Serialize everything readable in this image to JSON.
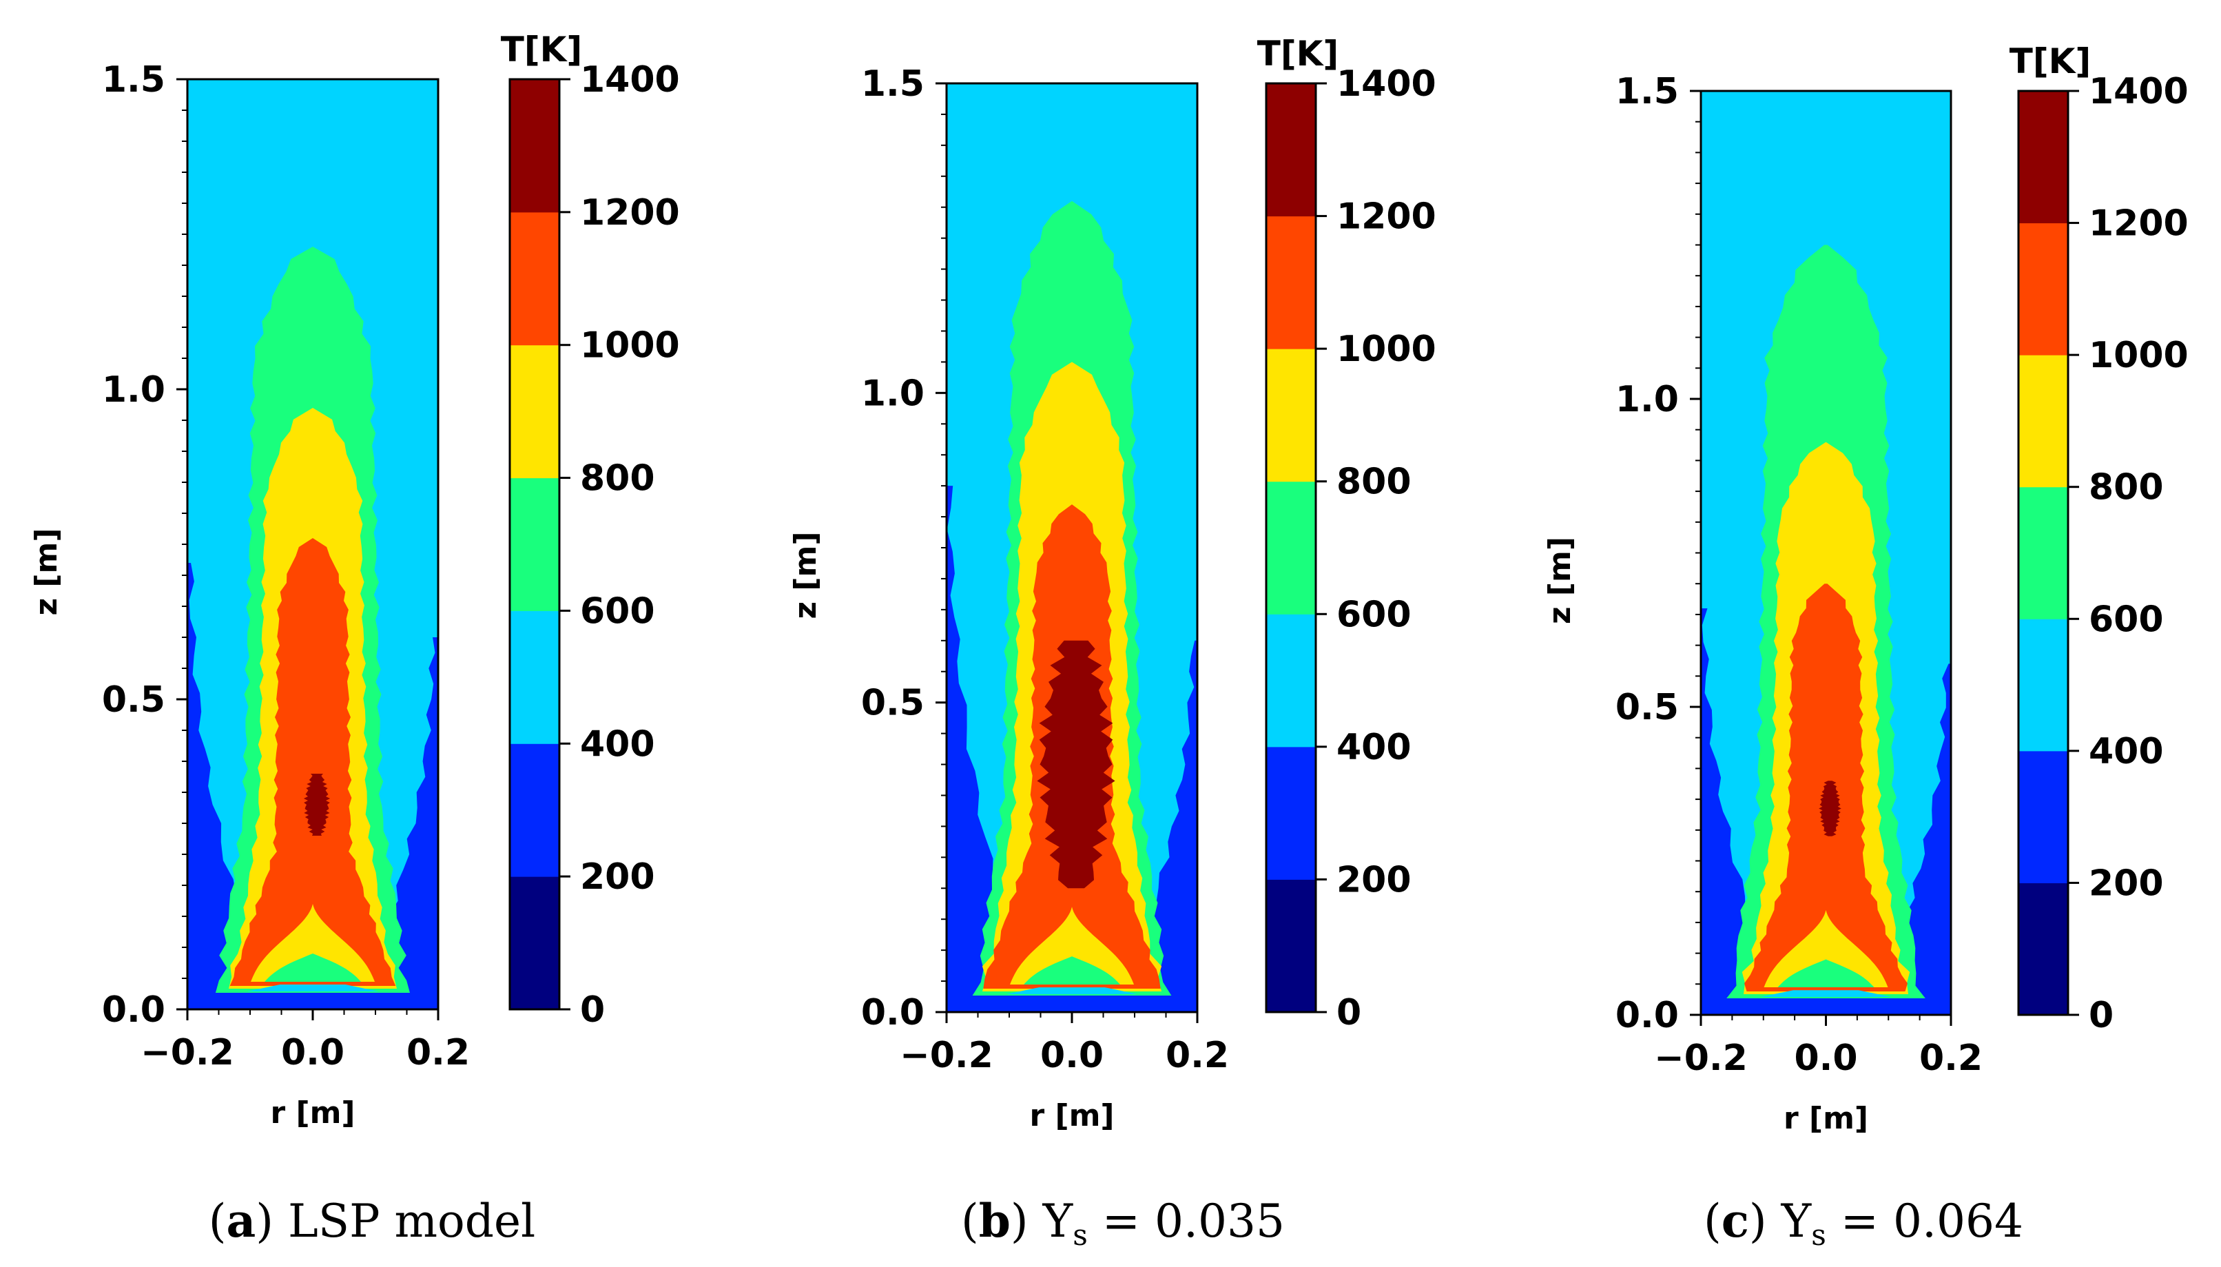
{
  "colors": {
    "levels": [
      "#00007f",
      "#0028ff",
      "#00d4ff",
      "#19ff7d",
      "#ffe500",
      "#ff4600",
      "#8e0000"
    ],
    "frame": "#000000",
    "background": "#ffffff"
  },
  "chart_data": [
    {
      "type": "contour",
      "title": "LSP model",
      "caption": {
        "letter": "a",
        "text": "LSP model"
      },
      "xlabel": "r [m]",
      "ylabel": "z [m]",
      "xlim": [
        -0.2,
        0.2
      ],
      "ylim": [
        0.0,
        1.5
      ],
      "xticks": [
        -0.2,
        0.0,
        0.2
      ],
      "xtick_labels": [
        "−0.2",
        "0.0",
        "0.2"
      ],
      "yticks": [
        0.0,
        0.5,
        1.0,
        1.5
      ],
      "ytick_labels": [
        "0.0",
        "0.5",
        "1.0",
        "1.5"
      ],
      "colorbar": {
        "label": "T[K]",
        "levels": [
          0,
          200,
          400,
          600,
          800,
          1000,
          1200,
          1400
        ],
        "level_labels": [
          "0",
          "200",
          "400",
          "600",
          "800",
          "1000",
          "1200",
          "1400"
        ]
      },
      "contours": [
        {
          "T_min": 200,
          "T_max": 400,
          "extent_z": 0.72,
          "wall_z": 0.6
        },
        {
          "T_min": 600,
          "T_max": 800,
          "r_half": 0.1,
          "z_top": 1.23
        },
        {
          "T_min": 800,
          "T_max": 1000,
          "r_half": 0.075,
          "z_top": 0.97
        },
        {
          "T_min": 1000,
          "T_max": 1200,
          "r_half": 0.055,
          "z_top": 0.76
        },
        {
          "T_min": 1200,
          "T_max": 1400,
          "r_half": 0.012,
          "z_range": [
            0.28,
            0.38
          ]
        }
      ]
    },
    {
      "type": "contour",
      "title": "Ys = 0.035",
      "caption": {
        "letter": "b",
        "text": "Y",
        "sub": "s",
        "rest": " = 0.035"
      },
      "xlabel": "r [m]",
      "ylabel": "z [m]",
      "xlim": [
        -0.2,
        0.2
      ],
      "ylim": [
        0.0,
        1.5
      ],
      "xticks": [
        -0.2,
        0.0,
        0.2
      ],
      "xtick_labels": [
        "−0.2",
        "0.0",
        "0.2"
      ],
      "yticks": [
        0.0,
        0.5,
        1.0,
        1.5
      ],
      "ytick_labels": [
        "0.0",
        "0.5",
        "1.0",
        "1.5"
      ],
      "colorbar": {
        "label": "T[K]",
        "levels": [
          0,
          200,
          400,
          600,
          800,
          1000,
          1200,
          1400
        ],
        "level_labels": [
          "0",
          "200",
          "400",
          "600",
          "800",
          "1000",
          "1200",
          "1400"
        ]
      },
      "contours": [
        {
          "T_min": 200,
          "T_max": 400,
          "extent_z": 0.85,
          "wall_z": 0.6
        },
        {
          "T_min": 600,
          "T_max": 800,
          "r_half": 0.1,
          "z_top": 1.31
        },
        {
          "T_min": 800,
          "T_max": 1000,
          "r_half": 0.08,
          "z_top": 1.05
        },
        {
          "T_min": 1000,
          "T_max": 1200,
          "r_half": 0.06,
          "z_top": 0.82
        },
        {
          "T_min": 1200,
          "T_max": 1400,
          "r_half": 0.035,
          "z_range": [
            0.2,
            0.6
          ]
        }
      ]
    },
    {
      "type": "contour",
      "title": "Ys = 0.064",
      "caption": {
        "letter": "c",
        "text": "Y",
        "sub": "s",
        "rest": " = 0.064"
      },
      "xlabel": "r [m]",
      "ylabel": "z [m]",
      "xlim": [
        -0.2,
        0.2
      ],
      "ylim": [
        0.0,
        1.5
      ],
      "xticks": [
        -0.2,
        0.0,
        0.2
      ],
      "xtick_labels": [
        "−0.2",
        "0.0",
        "0.2"
      ],
      "yticks": [
        0.0,
        0.5,
        1.0,
        1.5
      ],
      "ytick_labels": [
        "0.0",
        "0.5",
        "1.0",
        "1.5"
      ],
      "colorbar": {
        "label": "T[K]",
        "levels": [
          0,
          200,
          400,
          600,
          800,
          1000,
          1200,
          1400
        ],
        "level_labels": [
          "0",
          "200",
          "400",
          "600",
          "800",
          "1000",
          "1200",
          "1400"
        ]
      },
      "contours": [
        {
          "T_min": 200,
          "T_max": 400,
          "extent_z": 0.66,
          "wall_z": 0.57
        },
        {
          "T_min": 600,
          "T_max": 800,
          "r_half": 0.1,
          "z_top": 1.25
        },
        {
          "T_min": 800,
          "T_max": 1000,
          "r_half": 0.075,
          "z_top": 0.93
        },
        {
          "T_min": 1000,
          "T_max": 1200,
          "r_half": 0.055,
          "z_top": 0.7
        },
        {
          "T_min": 1200,
          "T_max": 1400,
          "r_half": 0.01,
          "z_range": [
            0.29,
            0.38
          ]
        }
      ]
    }
  ]
}
